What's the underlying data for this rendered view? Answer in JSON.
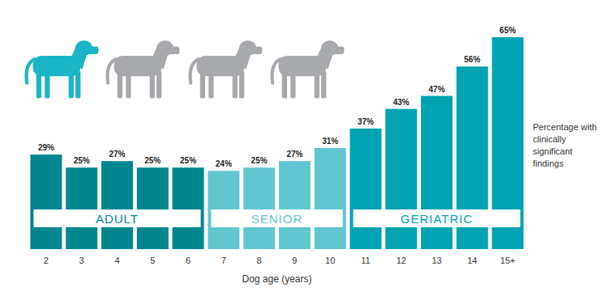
{
  "chart_data": {
    "type": "bar",
    "ylabel": "Percentage with clinically significant findings",
    "xlabel": "Dog age (years)",
    "categories": [
      "2",
      "3",
      "4",
      "5",
      "6",
      "7",
      "8",
      "9",
      "10",
      "11",
      "12",
      "13",
      "14",
      "15+"
    ],
    "values": [
      29,
      25,
      27,
      25,
      25,
      24,
      25,
      27,
      31,
      37,
      43,
      47,
      56,
      65
    ],
    "value_labels": [
      "29%",
      "25%",
      "27%",
      "25%",
      "25%",
      "24%",
      "25%",
      "27%",
      "31%",
      "37%",
      "43%",
      "47%",
      "56%",
      "65%"
    ],
    "colors": [
      "#00868f",
      "#00868f",
      "#00868f",
      "#00868f",
      "#00868f",
      "#62c6d0",
      "#62c6d0",
      "#62c6d0",
      "#62c6d0",
      "#00a3b1",
      "#00a3b1",
      "#00a3b1",
      "#00a3b1",
      "#00a3b1"
    ],
    "groups": [
      {
        "label": "ADULT",
        "from": "2",
        "to": "6"
      },
      {
        "label": "SENIOR",
        "from": "7",
        "to": "10"
      },
      {
        "label": "GERIATRIC",
        "from": "11",
        "to": "15+"
      }
    ],
    "ylim": [
      0,
      65
    ],
    "yticks": [],
    "grid": false,
    "data_labels": true,
    "tick_labels": "x"
  }
}
